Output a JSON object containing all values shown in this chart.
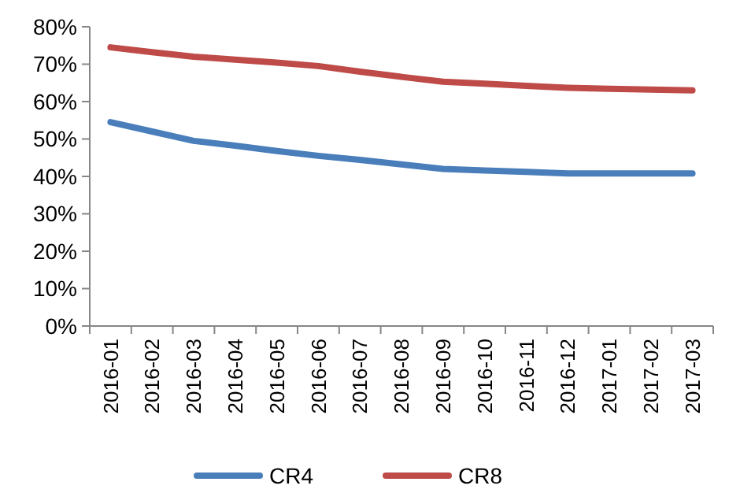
{
  "chart_data": {
    "type": "line",
    "categories": [
      "2016-01",
      "2016-02",
      "2016-03",
      "2016-04",
      "2016-05",
      "2016-06",
      "2016-07",
      "2016-08",
      "2016-09",
      "2016-10",
      "2016-11",
      "2016-12",
      "2017-01",
      "2017-02",
      "2017-03"
    ],
    "series": [
      {
        "name": "CR4",
        "color": "#4a7ebb",
        "values": [
          54.5,
          52,
          49.5,
          48.2,
          46.8,
          45.5,
          44.4,
          43.2,
          42,
          41.6,
          41.2,
          40.8,
          40.8,
          40.8,
          40.8
        ]
      },
      {
        "name": "CR8",
        "color": "#be4b48",
        "values": [
          74.5,
          73.2,
          72,
          71.2,
          70.4,
          69.5,
          68,
          66.6,
          65.3,
          64.8,
          64.2,
          63.7,
          63.4,
          63.2,
          63
        ]
      }
    ],
    "ylim": [
      0,
      80
    ],
    "yticks": [
      {
        "value": 0,
        "label": "0%"
      },
      {
        "value": 10,
        "label": "10%"
      },
      {
        "value": 20,
        "label": "20%"
      },
      {
        "value": 30,
        "label": "30%"
      },
      {
        "value": 40,
        "label": "40%"
      },
      {
        "value": 50,
        "label": "50%"
      },
      {
        "value": 60,
        "label": "60%"
      },
      {
        "value": 70,
        "label": "70%"
      },
      {
        "value": 80,
        "label": "80%"
      }
    ],
    "grid": false,
    "legend": "bottom",
    "marker": "none",
    "line_style": "solid"
  }
}
